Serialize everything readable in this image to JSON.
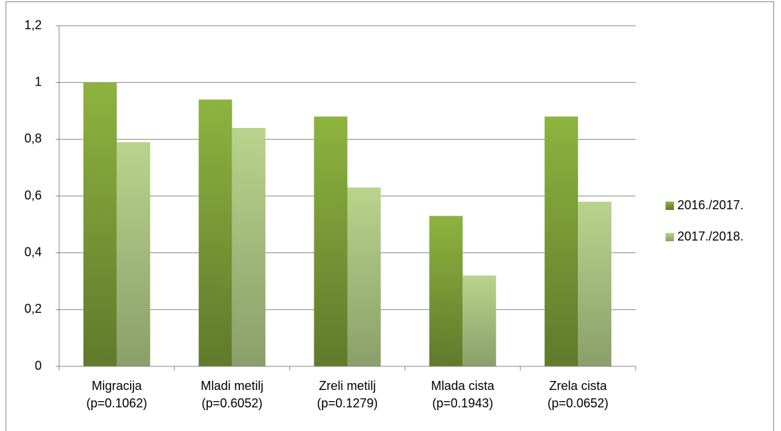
{
  "chart_data": {
    "type": "bar",
    "categories": [
      "Migracija (p=0.1062)",
      "Mladi metilj (p=0.6052)",
      "Zreli metilj (p=0.1279)",
      "Mlada cista (p=0.1943)",
      "Zrela cista (p=0.0652)"
    ],
    "series": [
      {
        "name": "2016./2017.",
        "color": "#8db33f",
        "values": [
          1,
          0.94,
          0.88,
          0.53,
          0.88
        ]
      },
      {
        "name": "2017./2018.",
        "color": "#b8d48c",
        "values": [
          0.79,
          0.84,
          0.63,
          0.32,
          0.58
        ]
      }
    ],
    "ylim": [
      0,
      1.2
    ],
    "yticks": [
      0,
      {
        "value": 0.2,
        "label": "0,2"
      },
      {
        "value": 0.4,
        "label": "0,4"
      },
      {
        "value": 0.6,
        "label": "0,6"
      },
      {
        "value": 0.8,
        "label": "0,8"
      },
      1,
      {
        "value": 1.2,
        "label": "1,2"
      }
    ],
    "grid": true,
    "legend": "right"
  }
}
